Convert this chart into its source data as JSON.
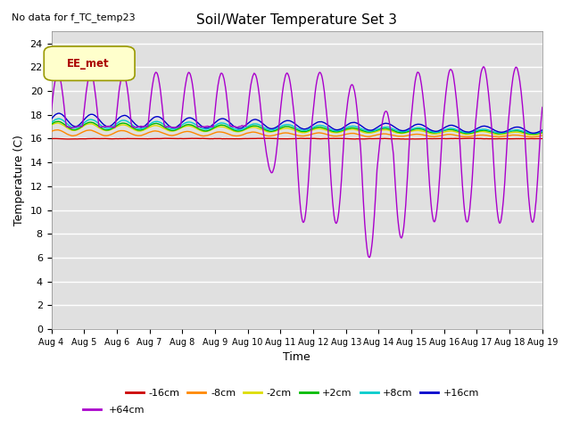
{
  "title": "Soil/Water Temperature Set 3",
  "no_data_text": "No data for f_TC_temp23",
  "xlabel": "Time",
  "ylabel": "Temperature (C)",
  "ylim": [
    0,
    25
  ],
  "yticks": [
    0,
    2,
    4,
    6,
    8,
    10,
    12,
    14,
    16,
    18,
    20,
    22,
    24
  ],
  "x_labels": [
    "Aug 4",
    "Aug 5",
    "Aug 6",
    "Aug 7",
    "Aug 8",
    "Aug 9",
    "Aug 10",
    "Aug 11",
    "Aug 12",
    "Aug 13",
    "Aug 14",
    "Aug 15",
    "Aug 16",
    "Aug 17",
    "Aug 18",
    "Aug 19"
  ],
  "legend_box_label": "EE_met",
  "legend_entries": [
    {
      "label": "-16cm",
      "color": "#cc0000"
    },
    {
      "label": "-8cm",
      "color": "#ff8800"
    },
    {
      "label": "-2cm",
      "color": "#dddd00"
    },
    {
      "label": "+2cm",
      "color": "#00bb00"
    },
    {
      "label": "+8cm",
      "color": "#00cccc"
    },
    {
      "label": "+16cm",
      "color": "#0000cc"
    },
    {
      "label": "+64cm",
      "color": "#aa00cc"
    }
  ],
  "plot_bg_color": "#e0e0e0",
  "fig_bg_color": "#ffffff",
  "grid_color": "#ffffff",
  "title_fontsize": 11,
  "axis_fontsize": 9,
  "tick_fontsize": 7
}
